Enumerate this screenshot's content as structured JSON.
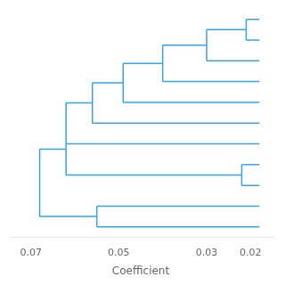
{
  "chart_data": {
    "type": "dendrogram",
    "xlabel": "Coefficient",
    "xlim": [
      0.075,
      0.015
    ],
    "xticks": [
      0.07,
      0.05,
      0.03,
      0.02
    ],
    "grid": false,
    "tick_labels": "x",
    "tree": {
      "x": 0.068,
      "children": [
        {
          "x": 0.062,
          "children": [
            {
              "x": 0.062,
              "children": [
                {
                  "x": 0.056,
                  "children": [
                    {
                      "x": 0.049,
                      "children": [
                        {
                          "x": 0.04,
                          "children": [
                            {
                              "x": 0.03,
                              "children": [
                                {
                                  "x": 0.021,
                                  "children": [
                                    {
                                      "x": 0.018
                                    },
                                    {
                                      "x": 0.018
                                    }
                                  ]
                                },
                                {
                                  "x": 0.018
                                }
                              ]
                            },
                            {
                              "x": 0.018
                            }
                          ]
                        },
                        {
                          "x": 0.018
                        }
                      ]
                    },
                    {
                      "x": 0.018
                    }
                  ]
                },
                {
                  "x": 0.018
                }
              ]
            },
            {
              "x": 0.022,
              "children": [
                {
                  "x": 0.018
                },
                {
                  "x": 0.018
                }
              ]
            }
          ]
        },
        {
          "x": 0.055,
          "children": [
            {
              "x": 0.018
            },
            {
              "x": 0.018
            }
          ]
        }
      ]
    }
  }
}
